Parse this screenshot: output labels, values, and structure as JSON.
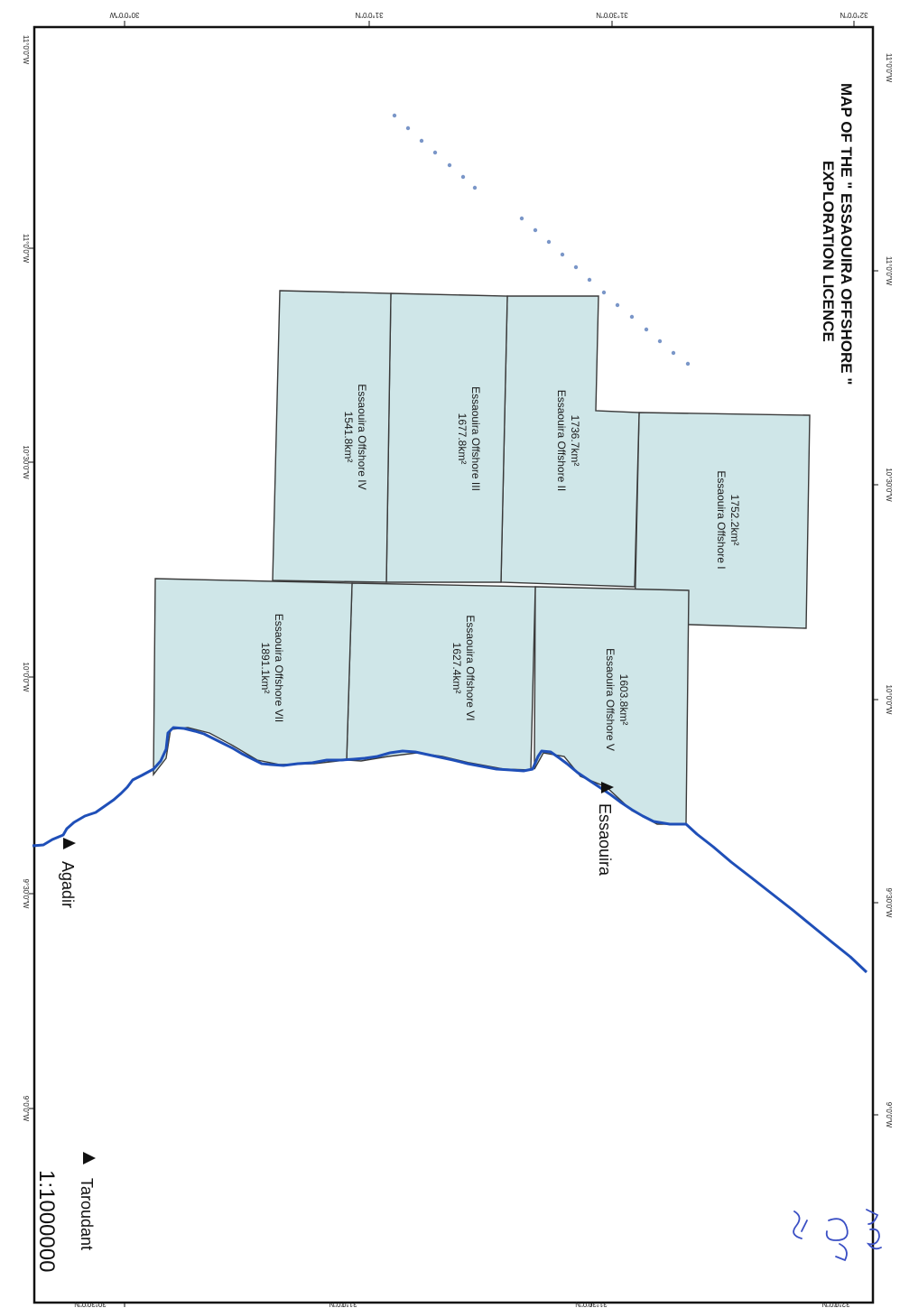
{
  "title_line1": "MAP OF THE \" ESSAOUIRA OFFSHORE \"",
  "title_line2": "EXPLORATION LICENCE",
  "scale": "1:1000000",
  "colors": {
    "block_fill": "#cfe6e8",
    "block_stroke": "#3a3a3a",
    "coast": "#1f4fb8",
    "frame": "#111111",
    "ink": "#3a4fc4"
  },
  "blocks": [
    {
      "id": "I",
      "name": "Essaouira Offshore I",
      "area": "1752.2km²"
    },
    {
      "id": "II",
      "name": "Essaouira Offshore II",
      "area": "1736.7km²"
    },
    {
      "id": "III",
      "name": "Essaouira Offshore III",
      "area": "1677.8km²"
    },
    {
      "id": "IV",
      "name": "Essaouira Offshore IV",
      "area": "1541.8km²"
    },
    {
      "id": "V",
      "name": "Essaouira Offshore V",
      "area": "1603.8km²"
    },
    {
      "id": "VI",
      "name": "Essaouira Offshore VI",
      "area": "1627.4km²"
    },
    {
      "id": "VII",
      "name": "Essaouira Offshore VII",
      "area": "1891.1km²"
    }
  ],
  "places": {
    "essaouira": "Essaouira",
    "agadir": "Agadir",
    "taroudant": "Taroudant"
  },
  "ticks_top": [
    "30°0'0\"W",
    "31°0'0\"N",
    "31°30'0\"N",
    "32°0'0\"N"
  ],
  "ticks_bottom": [
    "30°30'0\"N",
    "31°0'0\"N",
    "31°30'0\"N",
    "32°0'0\"N"
  ],
  "ticks_left": [
    "11°0'0\"W",
    "11°0'0\"W",
    "10°30'0\"W",
    "10°0'0\"W",
    "9°30'0\"W",
    "9°0'0\"W",
    "8°30'0\"W"
  ],
  "ticks_right": [
    "11°0'0\"W",
    "11°0'0\"W",
    "10°30'0\"W",
    "10°0'0\"W",
    "9°30'0\"W",
    "9°0'0\"W",
    "8°30'0\"W"
  ]
}
